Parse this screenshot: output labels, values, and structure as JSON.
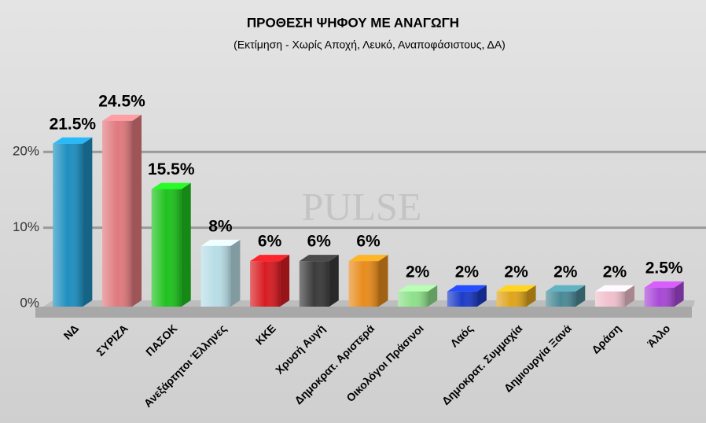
{
  "chart_data": {
    "type": "bar",
    "title": "ΠΡΟΘΕΣΗ ΨΗΦΟΥ ΜΕ ΑΝΑΓΩΓΗ",
    "subtitle": "(Εκτίμηση  -  Χωρίς Αποχή, Λευκό, Αναποφάσιστους, ΔΑ)",
    "watermark": "PULSE",
    "categories": [
      "ΝΔ",
      "ΣΥΡΙΖΑ",
      "ΠΑΣΟΚ",
      "Ανεξάρτητοι Έλληνες",
      "ΚΚΕ",
      "Χρυσή Αυγή",
      "Δημοκρατ. Αριστερά",
      "Οικολόγοι Πράσινοι",
      "Λαός",
      "Δημοκρατ. Συμμαχία",
      "Δημιουργία Ξανά",
      "Δράση",
      "Άλλο"
    ],
    "values": [
      21.5,
      24.5,
      15.5,
      8,
      6,
      6,
      6,
      2,
      2,
      2,
      2,
      2,
      2.5
    ],
    "value_labels": [
      "21.5%",
      "24.5%",
      "15.5%",
      "8%",
      "6%",
      "6%",
      "6%",
      "2%",
      "2%",
      "2%",
      "2%",
      "2%",
      "2.5%"
    ],
    "colors": [
      "#1e8fc0",
      "#e07a7e",
      "#1ec21e",
      "#b8dde6",
      "#d81c22",
      "#3a3a3a",
      "#e88c1c",
      "#8ee08a",
      "#1c3cc8",
      "#e0a41c",
      "#4a8a96",
      "#f0c0cc",
      "#a848d8"
    ],
    "ylim": [
      0,
      25
    ],
    "yticks": [
      {
        "value": 0,
        "label": "0%"
      },
      {
        "value": 10,
        "label": "10%"
      },
      {
        "value": 20,
        "label": "20%"
      }
    ],
    "grid": true
  }
}
